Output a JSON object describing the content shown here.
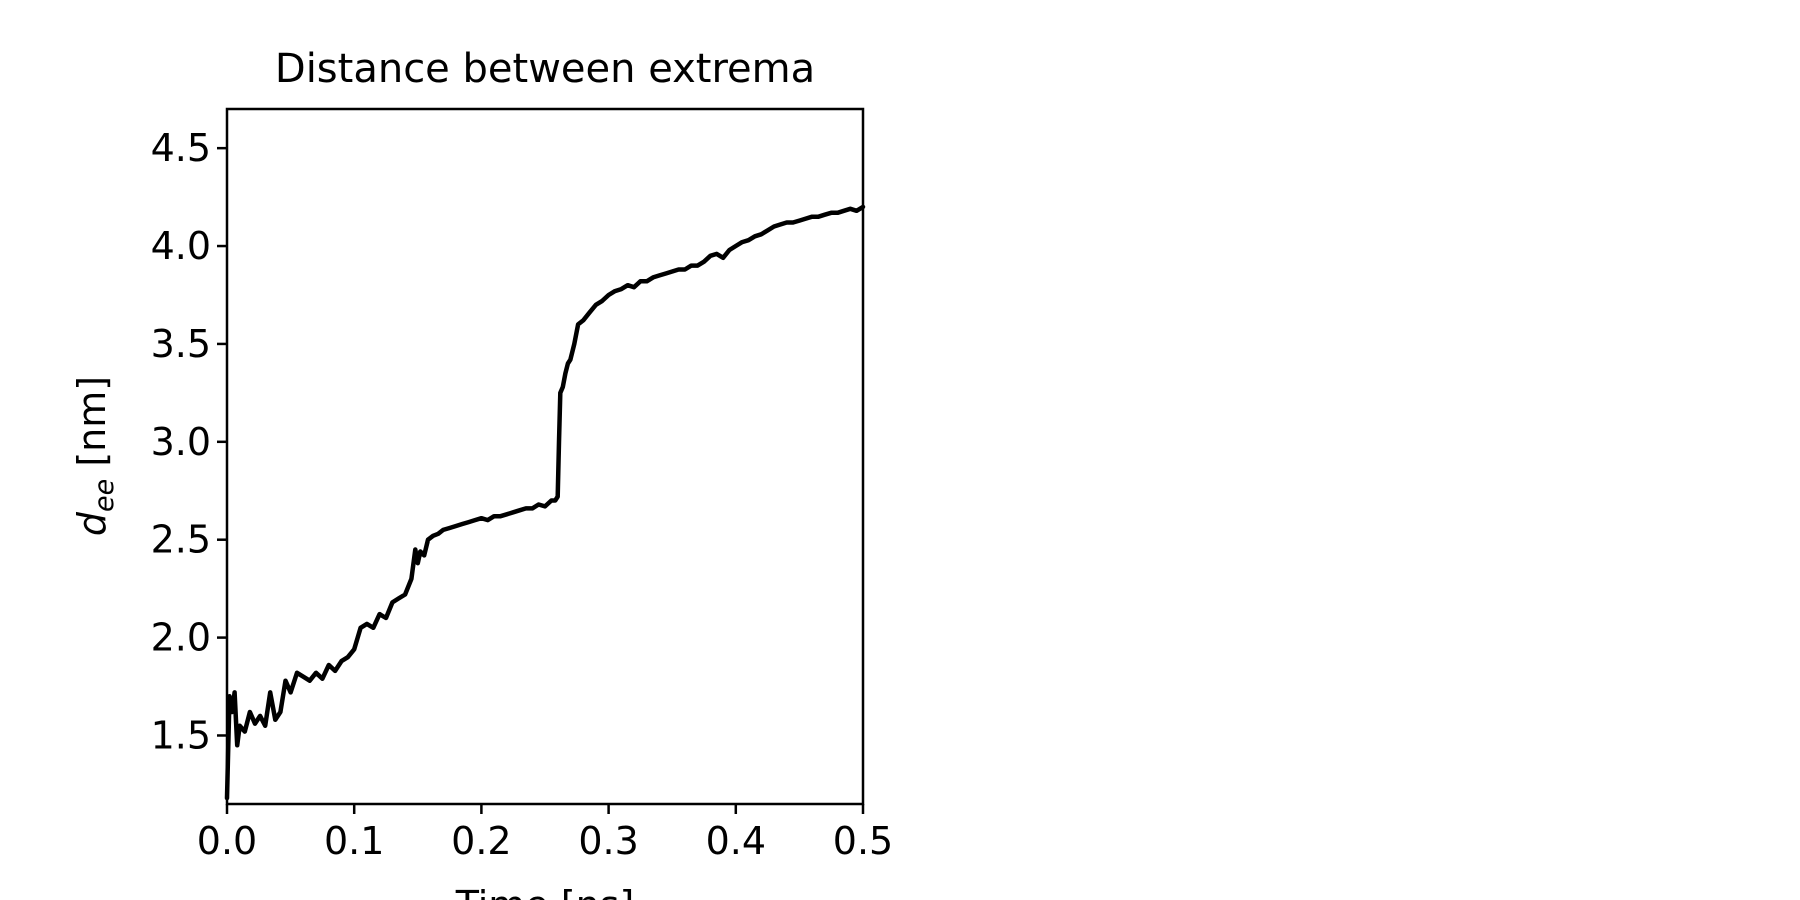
{
  "chart_data": {
    "type": "line",
    "title": "Distance between extrema",
    "xlabel": "Time [ns]",
    "ylabel_main": "d",
    "ylabel_sub": "ee",
    "ylabel_unit": " [nm]",
    "xlim": [
      0.0,
      0.5
    ],
    "ylim": [
      1.15,
      4.7
    ],
    "grid": false,
    "xticks": [
      "0.0",
      "0.1",
      "0.2",
      "0.3",
      "0.4",
      "0.5"
    ],
    "yticks": [
      "1.5",
      "2.0",
      "2.5",
      "3.0",
      "3.5",
      "4.0",
      "4.5"
    ],
    "line_color": "#000000",
    "series": [
      {
        "x": [
          0.0,
          0.002,
          0.004,
          0.006,
          0.008,
          0.01,
          0.014,
          0.018,
          0.022,
          0.026,
          0.03,
          0.034,
          0.038,
          0.042,
          0.046,
          0.05,
          0.055,
          0.06,
          0.065,
          0.07,
          0.075,
          0.08,
          0.085,
          0.09,
          0.095,
          0.1,
          0.105,
          0.11,
          0.115,
          0.12,
          0.125,
          0.13,
          0.135,
          0.14,
          0.145,
          0.148,
          0.15,
          0.152,
          0.155,
          0.158,
          0.162,
          0.166,
          0.17,
          0.175,
          0.18,
          0.185,
          0.19,
          0.195,
          0.2,
          0.205,
          0.21,
          0.215,
          0.22,
          0.225,
          0.23,
          0.235,
          0.24,
          0.245,
          0.25,
          0.255,
          0.258,
          0.26,
          0.261,
          0.262,
          0.264,
          0.266,
          0.268,
          0.27,
          0.273,
          0.276,
          0.28,
          0.285,
          0.29,
          0.295,
          0.3,
          0.305,
          0.31,
          0.315,
          0.32,
          0.325,
          0.33,
          0.335,
          0.34,
          0.345,
          0.35,
          0.355,
          0.36,
          0.365,
          0.37,
          0.375,
          0.38,
          0.385,
          0.39,
          0.395,
          0.4,
          0.405,
          0.41,
          0.415,
          0.42,
          0.425,
          0.43,
          0.435,
          0.44,
          0.445,
          0.45,
          0.455,
          0.46,
          0.465,
          0.47,
          0.475,
          0.48,
          0.485,
          0.49,
          0.495,
          0.5
        ],
        "y": [
          1.18,
          1.7,
          1.62,
          1.72,
          1.45,
          1.55,
          1.52,
          1.62,
          1.56,
          1.6,
          1.55,
          1.72,
          1.58,
          1.62,
          1.78,
          1.72,
          1.82,
          1.8,
          1.78,
          1.82,
          1.79,
          1.86,
          1.83,
          1.88,
          1.9,
          1.94,
          2.05,
          2.07,
          2.05,
          2.12,
          2.1,
          2.18,
          2.2,
          2.22,
          2.3,
          2.45,
          2.38,
          2.44,
          2.42,
          2.5,
          2.52,
          2.53,
          2.55,
          2.56,
          2.57,
          2.58,
          2.59,
          2.6,
          2.61,
          2.6,
          2.62,
          2.62,
          2.63,
          2.64,
          2.65,
          2.66,
          2.66,
          2.68,
          2.67,
          2.7,
          2.7,
          2.72,
          3.0,
          3.25,
          3.28,
          3.35,
          3.4,
          3.42,
          3.5,
          3.6,
          3.62,
          3.66,
          3.7,
          3.72,
          3.75,
          3.77,
          3.78,
          3.8,
          3.79,
          3.82,
          3.82,
          3.84,
          3.85,
          3.86,
          3.87,
          3.88,
          3.88,
          3.9,
          3.9,
          3.92,
          3.95,
          3.96,
          3.94,
          3.98,
          4.0,
          4.02,
          4.03,
          4.05,
          4.06,
          4.08,
          4.1,
          4.11,
          4.12,
          4.12,
          4.13,
          4.14,
          4.15,
          4.15,
          4.16,
          4.17,
          4.17,
          4.18,
          4.19,
          4.18,
          4.2
        ]
      }
    ]
  }
}
